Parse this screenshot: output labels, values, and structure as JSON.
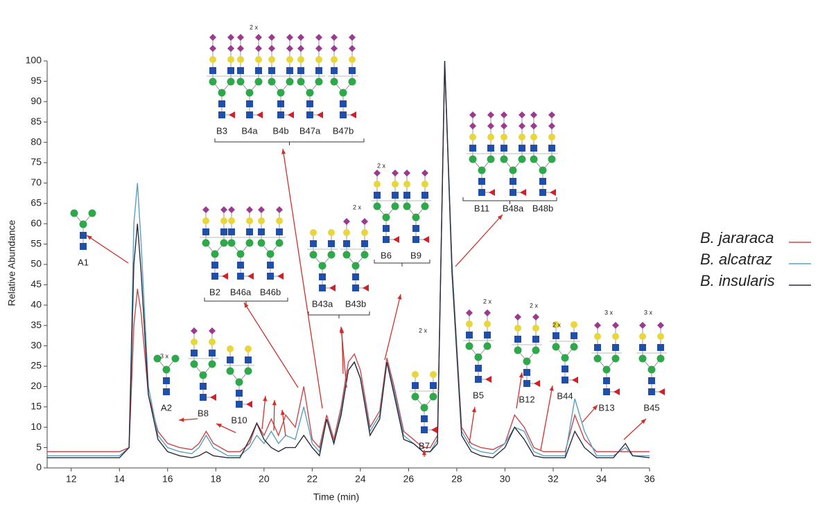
{
  "chart_data": {
    "type": "line",
    "x_label": "Time (min)",
    "y_label": "Relative Abundance",
    "xlim": [
      11,
      36
    ],
    "xticks": [
      12,
      14,
      16,
      18,
      20,
      22,
      24,
      26,
      28,
      30,
      32,
      34,
      36
    ],
    "ylim": [
      0,
      100
    ],
    "yticks": [
      0,
      5,
      10,
      15,
      20,
      25,
      30,
      35,
      40,
      45,
      50,
      55,
      60,
      65,
      70,
      75,
      80,
      85,
      90,
      95,
      100
    ],
    "legend": "right",
    "x": [
      11,
      12,
      13,
      14,
      14.4,
      14.6,
      14.75,
      14.9,
      15.2,
      15.6,
      16,
      16.5,
      17,
      17.3,
      17.6,
      17.9,
      18.5,
      19,
      19.4,
      19.7,
      20,
      20.3,
      20.6,
      20.9,
      21.3,
      21.65,
      22,
      22.3,
      22.6,
      22.9,
      23.2,
      23.5,
      23.75,
      24,
      24.4,
      24.8,
      25.1,
      25.4,
      25.8,
      26.2,
      26.6,
      26.9,
      27.2,
      27.5,
      27.8,
      28.2,
      28.6,
      29,
      29.5,
      30,
      30.4,
      30.8,
      31.2,
      31.6,
      32,
      32.5,
      32.9,
      33.3,
      33.8,
      34.5,
      35,
      35.3,
      36
    ],
    "series": [
      {
        "name": "B. jararaca",
        "color": "#c8474a",
        "values": [
          4,
          4,
          4,
          4,
          5,
          35,
          44,
          38,
          18,
          9,
          6,
          5,
          4.5,
          6,
          9,
          6,
          4,
          4,
          6,
          11,
          8,
          12,
          8,
          13,
          10,
          20,
          7,
          5,
          13,
          7,
          15,
          26,
          28,
          24,
          10,
          14,
          27,
          20,
          9,
          7,
          5,
          5,
          8,
          99,
          50,
          10,
          6,
          5,
          4.5,
          6,
          13,
          10,
          5,
          4,
          4,
          4,
          13,
          7,
          4,
          4,
          4,
          4,
          4
        ]
      },
      {
        "name": "B. alcatraz",
        "color": "#5b9fc0",
        "values": [
          3,
          3,
          3,
          3,
          5,
          60,
          70,
          55,
          20,
          8,
          5,
          4,
          3.5,
          5,
          8,
          5,
          3,
          3,
          5,
          8,
          6,
          9,
          6,
          8,
          7,
          15,
          6,
          4,
          12,
          6,
          14,
          24,
          26,
          22,
          9,
          13,
          26,
          19,
          8,
          6,
          4,
          4,
          7,
          100,
          50,
          9,
          5,
          4,
          3.5,
          6,
          10,
          9,
          4,
          3,
          3,
          3,
          17,
          9,
          3,
          3,
          5,
          3,
          3
        ]
      },
      {
        "name": "B. insularis",
        "color": "#2b2b3a",
        "values": [
          2.5,
          2.5,
          2.5,
          2.5,
          5,
          50,
          60,
          48,
          18,
          7,
          4,
          3,
          2.5,
          3,
          4,
          3,
          2.5,
          2.5,
          7,
          11,
          7,
          5,
          4,
          5,
          5,
          8,
          5,
          3,
          12,
          6,
          13,
          24,
          26,
          22,
          8,
          12,
          26,
          18,
          7,
          6,
          4,
          4,
          6,
          100,
          48,
          8,
          4,
          3,
          2.5,
          5,
          10,
          7,
          3,
          2.5,
          2.5,
          2.5,
          9,
          5,
          2.5,
          2.5,
          6,
          3,
          2.5
        ]
      }
    ],
    "annotations": [
      {
        "label": "A1"
      },
      {
        "label": "A2",
        "multiplier": "3 x"
      },
      {
        "label": "B8"
      },
      {
        "label": "B10"
      },
      {
        "label": "B2"
      },
      {
        "label": "B46a"
      },
      {
        "label": "B46b"
      },
      {
        "label": "B3"
      },
      {
        "label": "B4a",
        "multiplier": "2 x"
      },
      {
        "label": "B4b"
      },
      {
        "label": "B47a"
      },
      {
        "label": "B47b"
      },
      {
        "label": "B43a"
      },
      {
        "label": "B43b",
        "multiplier": "2 x"
      },
      {
        "label": "B6",
        "multiplier": "2 x"
      },
      {
        "label": "B9"
      },
      {
        "label": "B7",
        "multiplier": "2 x"
      },
      {
        "label": "B11"
      },
      {
        "label": "B48a"
      },
      {
        "label": "B48b"
      },
      {
        "label": "B5",
        "multiplier": "2 x"
      },
      {
        "label": "B12",
        "multiplier": "2 x"
      },
      {
        "label": "B44",
        "multiplier": "2 x"
      },
      {
        "label": "B13",
        "multiplier": "3 x"
      },
      {
        "label": "B45",
        "multiplier": "3 x"
      }
    ]
  }
}
